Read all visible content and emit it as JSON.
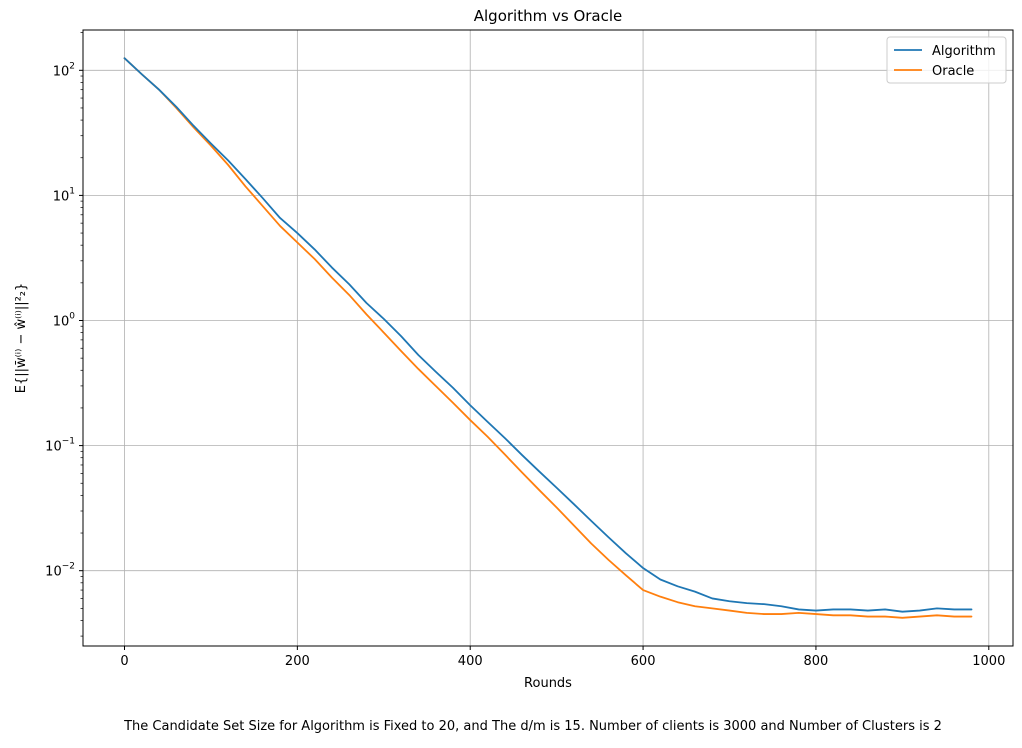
{
  "chart_data": {
    "type": "line",
    "title": "Algorithm vs Oracle",
    "xlabel": "Rounds",
    "ylabel": "E{||w̄⁽ⁱ⁾ − ŵ⁽ⁱ⁾||²₂}",
    "yscale": "log",
    "xlim": [
      -48,
      1028
    ],
    "ylim": [
      0.0025,
      210
    ],
    "xticks": [
      0,
      200,
      400,
      600,
      800,
      1000
    ],
    "xtick_labels": [
      "0",
      "200",
      "400",
      "600",
      "800",
      "1000"
    ],
    "yticks": [
      0.01,
      0.1,
      1,
      10,
      100
    ],
    "ytick_labels": [
      {
        "base": "10",
        "exp": "−2"
      },
      {
        "base": "10",
        "exp": "−1"
      },
      {
        "base": "10",
        "exp": "0"
      },
      {
        "base": "10",
        "exp": "1"
      },
      {
        "base": "10",
        "exp": "2"
      }
    ],
    "grid": true,
    "legend_position": "top-right",
    "series": [
      {
        "name": "Algorithm",
        "color": "#1f77b4",
        "x": [
          0,
          20,
          40,
          60,
          80,
          100,
          120,
          140,
          160,
          180,
          200,
          220,
          240,
          260,
          280,
          300,
          320,
          340,
          360,
          380,
          400,
          420,
          440,
          460,
          480,
          500,
          520,
          540,
          560,
          580,
          600,
          620,
          640,
          660,
          680,
          700,
          720,
          740,
          760,
          780,
          800,
          820,
          840,
          860,
          880,
          900,
          920,
          940,
          960,
          980
        ],
        "y": [
          125,
          93,
          70,
          51,
          36,
          26,
          19,
          13.5,
          9.5,
          6.6,
          5.0,
          3.7,
          2.65,
          1.95,
          1.38,
          1.03,
          0.75,
          0.53,
          0.39,
          0.29,
          0.21,
          0.155,
          0.115,
          0.084,
          0.062,
          0.046,
          0.034,
          0.025,
          0.0185,
          0.0138,
          0.0105,
          0.0085,
          0.0075,
          0.0068,
          0.006,
          0.0057,
          0.0055,
          0.0054,
          0.0052,
          0.0049,
          0.0048,
          0.0049,
          0.0049,
          0.0048,
          0.0049,
          0.0047,
          0.0048,
          0.005,
          0.0049,
          0.0049
        ]
      },
      {
        "name": "Oracle",
        "color": "#ff7f0e",
        "x": [
          0,
          20,
          40,
          60,
          80,
          100,
          120,
          140,
          160,
          180,
          200,
          220,
          240,
          260,
          280,
          300,
          320,
          340,
          360,
          380,
          400,
          420,
          440,
          460,
          480,
          500,
          520,
          540,
          560,
          580,
          600,
          620,
          640,
          660,
          680,
          700,
          720,
          740,
          760,
          780,
          800,
          820,
          840,
          860,
          880,
          900,
          920,
          940,
          960,
          980
        ],
        "y": [
          125,
          93,
          70,
          50,
          35,
          25,
          17.5,
          11.8,
          8.2,
          5.7,
          4.2,
          3.1,
          2.2,
          1.6,
          1.12,
          0.8,
          0.57,
          0.41,
          0.3,
          0.22,
          0.16,
          0.118,
          0.085,
          0.061,
          0.044,
          0.032,
          0.023,
          0.0165,
          0.0122,
          0.0092,
          0.007,
          0.0062,
          0.0056,
          0.0052,
          0.005,
          0.0048,
          0.0046,
          0.0045,
          0.0045,
          0.0046,
          0.0045,
          0.0044,
          0.0044,
          0.0043,
          0.0043,
          0.0042,
          0.0043,
          0.0044,
          0.0043,
          0.0043
        ]
      }
    ],
    "caption": "The Candidate Set Size for Algorithm is Fixed to 20, and The d/m is 15. Number of clients is 3000 and Number of Clusters is 2"
  }
}
